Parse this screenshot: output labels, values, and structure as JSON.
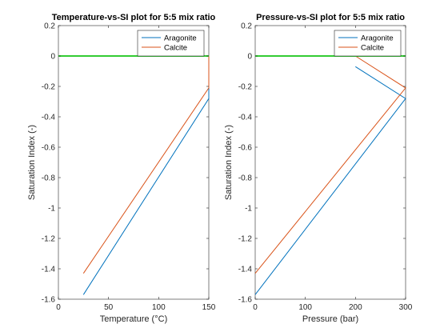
{
  "chart_data": [
    {
      "type": "line",
      "title": "Temperature-vs-SI plot for 5:5 mix ratio",
      "xlabel": "Temperature (°C)",
      "ylabel": "Saturation Index (-)",
      "xlim": [
        0,
        150
      ],
      "ylim": [
        -1.6,
        0.2
      ],
      "xticks": [
        0,
        50,
        100,
        150
      ],
      "yticks": [
        0.2,
        0,
        -0.2,
        -0.4,
        -0.6,
        -0.8,
        -1,
        -1.2,
        -1.4,
        -1.6
      ],
      "xtick_labels": [
        "0",
        "50",
        "100",
        "150"
      ],
      "ytick_labels": [
        "0.2",
        "0",
        "-0.2",
        "-0.4",
        "-0.6",
        "-0.8",
        "-1",
        "-1.2",
        "-1.4",
        "-1.6"
      ],
      "grid": false,
      "legend_position": "top-right",
      "series": [
        {
          "name": "Aragonite",
          "color": "#0072BD",
          "x": [
            25,
            150,
            150
          ],
          "y": [
            -1.57,
            -0.28,
            0.0
          ]
        },
        {
          "name": "Calcite",
          "color": "#D95319",
          "x": [
            25,
            150,
            150
          ],
          "y": [
            -1.43,
            -0.21,
            0.0
          ]
        },
        {
          "name": "",
          "color": "#33CC33",
          "x": [
            0,
            150
          ],
          "y": [
            0,
            0
          ]
        }
      ]
    },
    {
      "type": "line",
      "title": "Pressure-vs-SI plot for 5:5 mix ratio",
      "xlabel": "Pressure (bar)",
      "ylabel": "Saturation Index (-)",
      "xlim": [
        0,
        300
      ],
      "ylim": [
        -1.6,
        0.2
      ],
      "xticks": [
        0,
        100,
        200,
        300
      ],
      "yticks": [
        0.2,
        0,
        -0.2,
        -0.4,
        -0.6,
        -0.8,
        -1,
        -1.2,
        -1.4,
        -1.6
      ],
      "xtick_labels": [
        "0",
        "100",
        "200",
        "300"
      ],
      "ytick_labels": [
        "0.2",
        "0",
        "-0.2",
        "-0.4",
        "-0.6",
        "-0.8",
        "-1",
        "-1.2",
        "-1.4",
        "-1.6"
      ],
      "grid": false,
      "legend_position": "top-right",
      "series": [
        {
          "name": "Aragonite",
          "color": "#0072BD",
          "x": [
            0,
            300,
            200
          ],
          "y": [
            -1.57,
            -0.28,
            -0.07
          ]
        },
        {
          "name": "Calcite",
          "color": "#D95319",
          "x": [
            0,
            300,
            200
          ],
          "y": [
            -1.43,
            -0.21,
            0.0
          ]
        },
        {
          "name": "",
          "color": "#33CC33",
          "x": [
            0,
            300
          ],
          "y": [
            0,
            0
          ]
        }
      ]
    }
  ]
}
